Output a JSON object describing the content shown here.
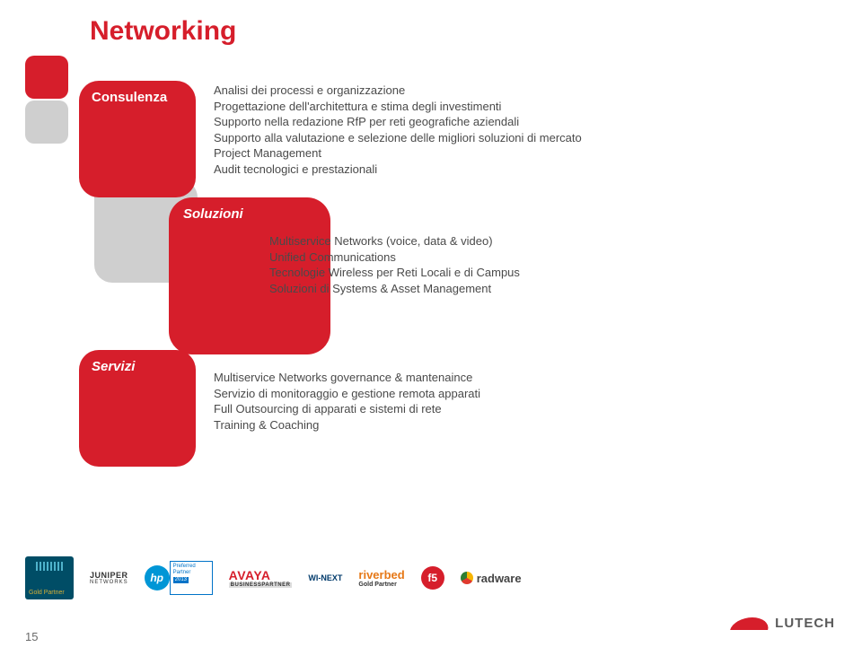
{
  "title": "Networking",
  "decor": {
    "color1": "#d61e2b",
    "color2": "#cfcfcf"
  },
  "consulenza": {
    "label": "Consulenza",
    "lines": [
      "Analisi dei processi e organizzazione",
      "Progettazione dell'architettura e stima degli investimenti",
      "Supporto nella redazione RfP per reti geografiche aziendali",
      "Supporto alla valutazione e selezione delle migliori soluzioni di mercato",
      "Project Management",
      "Audit tecnologici e prestazionali"
    ]
  },
  "soluzioni": {
    "label": "Soluzioni",
    "lines": [
      "Multiservice Networks (voice, data & video)",
      "Unified Communications",
      "Tecnologie Wireless per Reti Locali e di Campus",
      "Soluzioni di Systems & Asset Management"
    ]
  },
  "servizi": {
    "label": "Servizi",
    "lines": [
      "Multiservice Networks governance & mantenaince",
      "Servizio di monitoraggio e gestione remota apparati",
      "Full Outsourcing di apparati e sistemi di rete",
      "Training & Coaching"
    ]
  },
  "logos": {
    "cisco_gold": "Gold Partner",
    "juniper": "JUNIPER",
    "juniper_sub": "NETWORKS",
    "hp": "hp",
    "hp_badge_l1": "Preferred",
    "hp_badge_l2": "Partner",
    "hp_badge_yr": "2013",
    "avaya": "AVAYA",
    "avaya_bp": "BUSINESSPARTNER",
    "winext_top": "WI-NEXT",
    "riverbed": "riverbed",
    "riverbed_gp": "Gold Partner",
    "f5": "f5",
    "radware": "radware"
  },
  "footer": {
    "page": "15",
    "brand": "LUTECH"
  },
  "colors": {
    "accent": "#d61e2b",
    "text": "#4a4a4a"
  }
}
